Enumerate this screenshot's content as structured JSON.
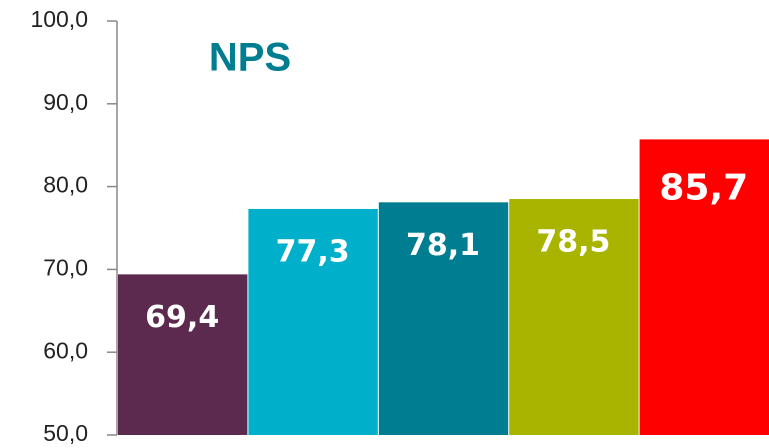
{
  "chart_data": {
    "type": "bar",
    "title": "NPS",
    "categories": [
      null,
      null,
      null,
      null,
      null
    ],
    "values": [
      69.4,
      77.3,
      78.1,
      78.5,
      85.7
    ],
    "value_labels": [
      "69,4",
      "77,3",
      "78,1",
      "78,5",
      "85,7"
    ],
    "colors": [
      "#5b2a4e",
      "#00afca",
      "#007d91",
      "#a9b400",
      "#ff0000"
    ],
    "title_color": "#007d91",
    "ylim": [
      50,
      100
    ],
    "yticks": [
      {
        "value": 50,
        "label": "50,0"
      },
      {
        "value": 60,
        "label": "60,0"
      },
      {
        "value": 70,
        "label": "70,0"
      },
      {
        "value": 80,
        "label": "80,0"
      },
      {
        "value": 90,
        "label": "90,0"
      },
      {
        "value": 100,
        "label": "100,0"
      }
    ],
    "grid": false
  }
}
